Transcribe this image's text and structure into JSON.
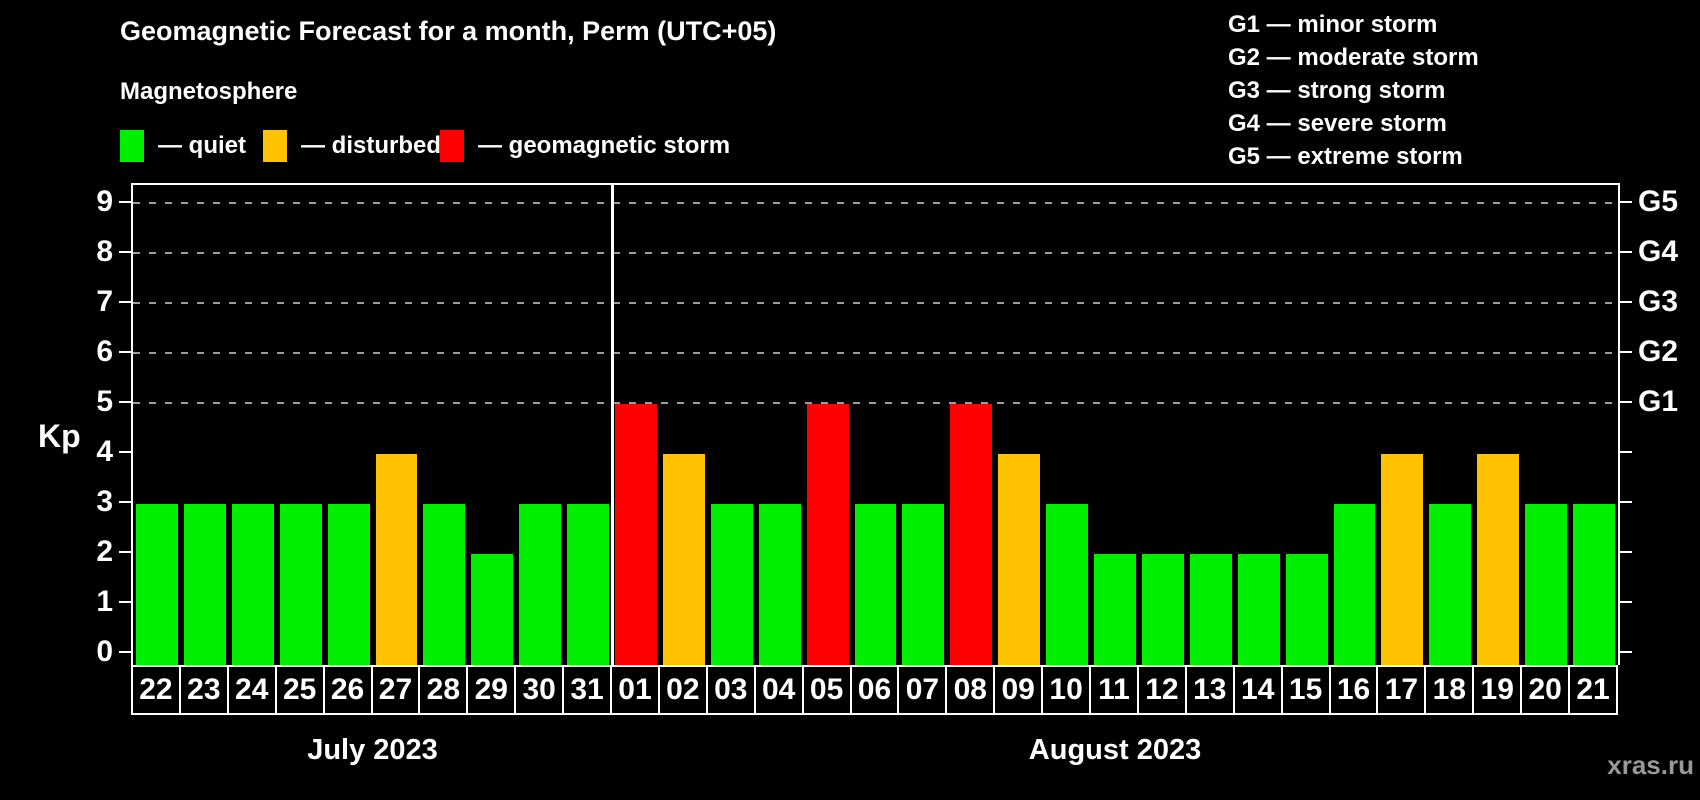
{
  "title": "Geomagnetic Forecast for a month, Perm (UTC+05)",
  "subtitle": "Magnetosphere",
  "watermark": "xras.ru",
  "colors": {
    "quiet": "#00ee00",
    "disturbed": "#ffc200",
    "storm": "#ff0000",
    "axis": "#ffffff",
    "grid": "#9c9c9c",
    "background": "#000000"
  },
  "legend": [
    {
      "label": "— quiet",
      "status": "quiet"
    },
    {
      "label": "— disturbed",
      "status": "disturbed"
    },
    {
      "label": "— geomagnetic storm",
      "status": "storm"
    }
  ],
  "g_legend": [
    "G1 — minor storm",
    "G2 — moderate storm",
    "G3 — strong storm",
    "G4 — severe storm",
    "G5 — extreme storm"
  ],
  "chart_data": {
    "type": "bar",
    "ylabel": "Kp",
    "ylim": [
      0,
      9.6
    ],
    "yticks": [
      0,
      1,
      2,
      3,
      4,
      5,
      6,
      7,
      8,
      9
    ],
    "gridlines": [
      5,
      6,
      7,
      8,
      9
    ],
    "right_axis_labels": [
      {
        "kp": 5,
        "label": "G1"
      },
      {
        "kp": 6,
        "label": "G2"
      },
      {
        "kp": 7,
        "label": "G3"
      },
      {
        "kp": 8,
        "label": "G4"
      },
      {
        "kp": 9,
        "label": "G5"
      }
    ],
    "months": [
      {
        "label": "July 2023",
        "days": 10
      },
      {
        "label": "August 2023",
        "days": 21
      }
    ],
    "bars": [
      {
        "day": "22",
        "kp": 3,
        "status": "quiet"
      },
      {
        "day": "23",
        "kp": 3,
        "status": "quiet"
      },
      {
        "day": "24",
        "kp": 3,
        "status": "quiet"
      },
      {
        "day": "25",
        "kp": 3,
        "status": "quiet"
      },
      {
        "day": "26",
        "kp": 3,
        "status": "quiet"
      },
      {
        "day": "27",
        "kp": 4,
        "status": "disturbed"
      },
      {
        "day": "28",
        "kp": 3,
        "status": "quiet"
      },
      {
        "day": "29",
        "kp": 2,
        "status": "quiet"
      },
      {
        "day": "30",
        "kp": 3,
        "status": "quiet"
      },
      {
        "day": "31",
        "kp": 3,
        "status": "quiet"
      },
      {
        "day": "01",
        "kp": 5,
        "status": "storm"
      },
      {
        "day": "02",
        "kp": 4,
        "status": "disturbed"
      },
      {
        "day": "03",
        "kp": 3,
        "status": "quiet"
      },
      {
        "day": "04",
        "kp": 3,
        "status": "quiet"
      },
      {
        "day": "05",
        "kp": 5,
        "status": "storm"
      },
      {
        "day": "06",
        "kp": 3,
        "status": "quiet"
      },
      {
        "day": "07",
        "kp": 3,
        "status": "quiet"
      },
      {
        "day": "08",
        "kp": 5,
        "status": "storm"
      },
      {
        "day": "09",
        "kp": 4,
        "status": "disturbed"
      },
      {
        "day": "10",
        "kp": 3,
        "status": "quiet"
      },
      {
        "day": "11",
        "kp": 2,
        "status": "quiet"
      },
      {
        "day": "12",
        "kp": 2,
        "status": "quiet"
      },
      {
        "day": "13",
        "kp": 2,
        "status": "quiet"
      },
      {
        "day": "14",
        "kp": 2,
        "status": "quiet"
      },
      {
        "day": "15",
        "kp": 2,
        "status": "quiet"
      },
      {
        "day": "16",
        "kp": 3,
        "status": "quiet"
      },
      {
        "day": "17",
        "kp": 4,
        "status": "disturbed"
      },
      {
        "day": "18",
        "kp": 3,
        "status": "quiet"
      },
      {
        "day": "19",
        "kp": 4,
        "status": "disturbed"
      },
      {
        "day": "20",
        "kp": 3,
        "status": "quiet"
      },
      {
        "day": "21",
        "kp": 3,
        "status": "quiet"
      }
    ]
  }
}
